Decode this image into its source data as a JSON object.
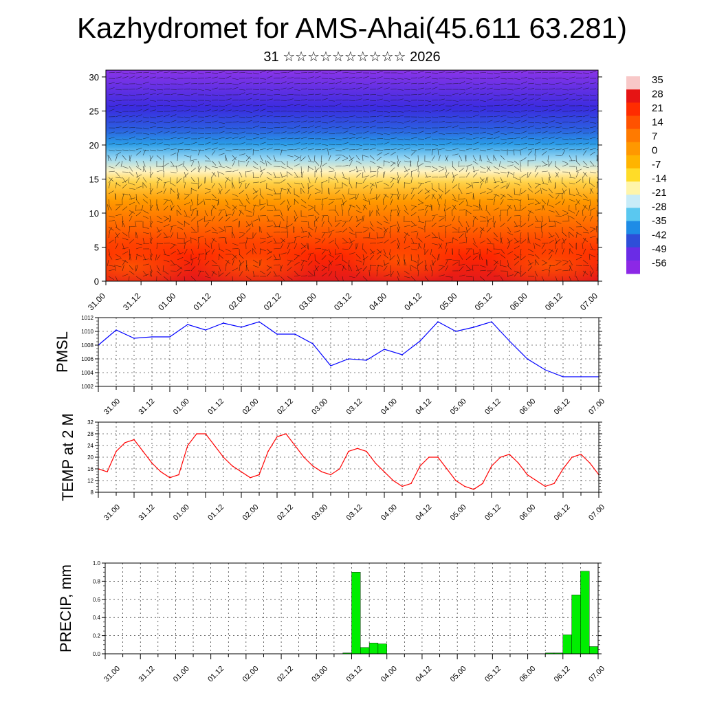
{
  "header": {
    "title": "Kazhydromet for AMS-Ahai(45.611 63.281)",
    "subtitle": "31 ☆☆☆☆☆☆☆☆☆☆ 2026"
  },
  "time_labels": [
    "31.00",
    "31.12",
    "01.00",
    "01.12",
    "02.00",
    "02.12",
    "03.00",
    "03.12",
    "04.00",
    "04.12",
    "05.00",
    "05.12",
    "06.00",
    "06.12",
    "07.00"
  ],
  "chart_data": [
    {
      "type": "heatmap",
      "title": "",
      "x": [
        "31.00",
        "31.12",
        "01.00",
        "01.12",
        "02.00",
        "02.12",
        "03.00",
        "03.12",
        "04.00",
        "04.12",
        "05.00",
        "05.12",
        "06.00",
        "06.12",
        "07.00"
      ],
      "y_ticks": [
        0,
        5,
        10,
        15,
        20,
        25,
        30
      ],
      "ylim": [
        0,
        31
      ],
      "legend": {
        "position": "right",
        "labels": [
          "35",
          "28",
          "21",
          "14",
          "7",
          "0",
          "-7",
          "-14",
          "-21",
          "-28",
          "-35",
          "-42",
          "-49",
          "-56"
        ],
        "colors": [
          "#f8c8c8",
          "#e61414",
          "#ff2c00",
          "#ff5200",
          "#ff7a00",
          "#ff9800",
          "#ffb400",
          "#ffdc28",
          "#fff5aa",
          "#c8ecf8",
          "#5ac8f0",
          "#1e8ce6",
          "#2e4ed8",
          "#6a2ce6",
          "#8c28e6"
        ]
      },
      "values_description_rows": {
        "height_levels": [
          0,
          5,
          10,
          15,
          20,
          25,
          30
        ],
        "temperature_by_level": [
          25,
          18,
          8,
          -10,
          -35,
          -55,
          -50
        ]
      }
    },
    {
      "type": "line",
      "ylabel": "PMSL",
      "ylim": [
        1002,
        1012
      ],
      "y_ticks": [
        1002,
        1004,
        1006,
        1008,
        1010,
        1012
      ],
      "x_range": [
        0,
        168
      ],
      "series": [
        {
          "color": "#0000ff",
          "x": [
            0,
            6,
            12,
            18,
            24,
            30,
            36,
            42,
            48,
            54,
            60,
            66,
            72,
            78,
            84,
            90,
            96,
            102,
            108,
            114,
            120,
            126,
            132,
            138,
            144,
            150,
            156,
            162,
            168
          ],
          "values": [
            1008.0,
            1010.2,
            1009.0,
            1009.2,
            1009.2,
            1011.0,
            1010.2,
            1011.2,
            1010.6,
            1011.4,
            1009.6,
            1009.6,
            1008.2,
            1005.0,
            1006.0,
            1005.8,
            1007.4,
            1006.6,
            1008.6,
            1011.4,
            1010.0,
            1010.6,
            1011.4,
            1008.6,
            1006.0,
            1004.4,
            1003.4,
            1003.4,
            1003.4
          ]
        }
      ]
    },
    {
      "type": "line",
      "ylabel": "TEMP at 2 M",
      "ylim": [
        8,
        32
      ],
      "y_ticks": [
        8,
        12,
        16,
        20,
        24,
        28,
        32
      ],
      "x_range": [
        0,
        168
      ],
      "series": [
        {
          "color": "#ff0000",
          "x": [
            0,
            3,
            6,
            9,
            12,
            15,
            18,
            21,
            24,
            27,
            30,
            33,
            36,
            39,
            42,
            45,
            48,
            51,
            54,
            57,
            60,
            63,
            66,
            69,
            72,
            75,
            78,
            81,
            84,
            87,
            90,
            93,
            96,
            99,
            102,
            105,
            108,
            111,
            114,
            117,
            120,
            123,
            126,
            129,
            132,
            135,
            138,
            141,
            144,
            147,
            150,
            153,
            156,
            159,
            162,
            165,
            168
          ],
          "values": [
            16,
            15,
            22,
            25,
            26,
            22,
            18,
            15,
            13,
            14,
            24,
            28,
            28,
            24,
            20,
            17,
            15,
            13,
            14,
            22,
            27,
            28,
            24,
            20,
            17,
            15,
            14,
            16,
            22,
            23,
            22,
            18,
            15,
            12,
            10,
            11,
            17,
            20,
            20,
            16,
            12,
            10,
            9,
            11,
            17,
            20,
            21,
            18,
            14,
            12,
            10,
            11,
            16,
            20,
            21,
            18,
            14
          ]
        }
      ]
    },
    {
      "type": "bar",
      "ylabel": "PRECIP, mm",
      "ylim": [
        0,
        1
      ],
      "y_ticks": [
        0.0,
        0.2,
        0.4,
        0.6,
        0.8,
        1.0
      ],
      "x_range": [
        0,
        168
      ],
      "bar_color": "#00ee00",
      "bars": [
        {
          "x0": 81,
          "x1": 84,
          "value": 0.01
        },
        {
          "x0": 84,
          "x1": 87,
          "value": 0.9
        },
        {
          "x0": 87,
          "x1": 90,
          "value": 0.07
        },
        {
          "x0": 90,
          "x1": 93,
          "value": 0.12
        },
        {
          "x0": 93,
          "x1": 96,
          "value": 0.11
        },
        {
          "x0": 150,
          "x1": 153,
          "value": 0.01
        },
        {
          "x0": 153,
          "x1": 156,
          "value": 0.01
        },
        {
          "x0": 156,
          "x1": 159,
          "value": 0.21
        },
        {
          "x0": 159,
          "x1": 162,
          "value": 0.65
        },
        {
          "x0": 162,
          "x1": 165,
          "value": 0.91
        },
        {
          "x0": 165,
          "x1": 168,
          "value": 0.08
        }
      ]
    }
  ]
}
